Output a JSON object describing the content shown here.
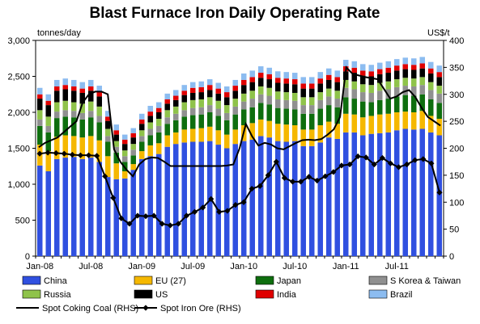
{
  "chart_data": {
    "type": "bar",
    "title": "Blast Furnace Iron Daily Operating Rate",
    "ylabel_left": "tonnes/day",
    "ylabel_right": "US$/t",
    "ylim_left": [
      0,
      3000
    ],
    "ylim_right": [
      0,
      400
    ],
    "yticks_left": [
      "0",
      "500",
      "1,000",
      "1,500",
      "2,000",
      "2,500",
      "3,000"
    ],
    "yticks_right": [
      "0",
      "50",
      "100",
      "150",
      "200",
      "250",
      "300",
      "350",
      "400"
    ],
    "x_labels": [
      "Jan-08",
      "Jul-08",
      "Jan-09",
      "Jul-09",
      "Jan-10",
      "Jul-10",
      "Jan-11",
      "Jul-11"
    ],
    "x_label_positions": [
      0,
      6,
      12,
      18,
      24,
      30,
      36,
      42
    ],
    "stack_series": [
      {
        "name": "China",
        "color": "#3050e0",
        "values": [
          1260,
          1180,
          1350,
          1370,
          1380,
          1350,
          1370,
          1310,
          1100,
          1070,
          1080,
          1200,
          1350,
          1390,
          1420,
          1520,
          1560,
          1580,
          1590,
          1590,
          1600,
          1550,
          1500,
          1560,
          1600,
          1620,
          1670,
          1650,
          1600,
          1590,
          1600,
          1530,
          1530,
          1580,
          1650,
          1630,
          1720,
          1720,
          1680,
          1700,
          1710,
          1720,
          1750,
          1770,
          1760,
          1770,
          1720,
          1680
        ]
      },
      {
        "name": "EU (27)",
        "color": "#f5b800",
        "values": [
          290,
          280,
          310,
          310,
          290,
          300,
          300,
          300,
          290,
          220,
          100,
          80,
          110,
          150,
          150,
          160,
          160,
          180,
          180,
          190,
          200,
          200,
          190,
          200,
          220,
          230,
          230,
          230,
          240,
          240,
          220,
          230,
          230,
          240,
          220,
          210,
          260,
          250,
          250,
          250,
          260,
          260,
          250,
          240,
          240,
          250,
          230,
          230
        ]
      },
      {
        "name": "Japan",
        "color": "#0e6e0e",
        "values": [
          260,
          260,
          260,
          260,
          260,
          250,
          260,
          250,
          200,
          150,
          130,
          120,
          130,
          140,
          150,
          160,
          170,
          180,
          190,
          190,
          200,
          200,
          200,
          210,
          220,
          220,
          230,
          230,
          220,
          220,
          220,
          220,
          220,
          230,
          230,
          230,
          230,
          220,
          220,
          190,
          200,
          210,
          220,
          230,
          230,
          230,
          230,
          220
        ]
      },
      {
        "name": "S Korea & Taiwan",
        "color": "#909090",
        "values": [
          90,
          90,
          90,
          90,
          90,
          90,
          90,
          90,
          80,
          80,
          80,
          80,
          80,
          90,
          90,
          90,
          90,
          90,
          100,
          100,
          100,
          100,
          100,
          110,
          110,
          120,
          120,
          120,
          120,
          120,
          120,
          120,
          120,
          120,
          120,
          120,
          130,
          130,
          130,
          130,
          130,
          130,
          130,
          130,
          130,
          130,
          130,
          130
        ]
      },
      {
        "name": "Russia",
        "color": "#8fc34a",
        "values": [
          130,
          130,
          130,
          130,
          120,
          130,
          130,
          130,
          100,
          80,
          80,
          80,
          80,
          90,
          100,
          100,
          100,
          110,
          110,
          110,
          110,
          110,
          110,
          110,
          110,
          110,
          110,
          110,
          110,
          110,
          110,
          110,
          110,
          110,
          110,
          110,
          110,
          110,
          110,
          110,
          110,
          110,
          110,
          110,
          110,
          110,
          110,
          110
        ]
      },
      {
        "name": "US",
        "color": "#000000",
        "values": [
          160,
          160,
          160,
          160,
          160,
          150,
          150,
          140,
          110,
          90,
          90,
          90,
          90,
          90,
          90,
          90,
          90,
          100,
          100,
          100,
          100,
          100,
          110,
          110,
          120,
          120,
          120,
          120,
          120,
          120,
          120,
          120,
          120,
          120,
          120,
          120,
          120,
          120,
          120,
          120,
          120,
          120,
          120,
          120,
          120,
          120,
          120,
          120
        ]
      },
      {
        "name": "India",
        "color": "#e00000",
        "values": [
          60,
          60,
          60,
          60,
          60,
          60,
          60,
          60,
          60,
          60,
          60,
          60,
          60,
          60,
          60,
          60,
          60,
          60,
          70,
          70,
          70,
          70,
          70,
          70,
          70,
          70,
          70,
          70,
          70,
          70,
          70,
          70,
          70,
          70,
          70,
          70,
          70,
          70,
          70,
          70,
          70,
          70,
          70,
          70,
          70,
          70,
          70,
          70
        ]
      },
      {
        "name": "Brazil",
        "color": "#8cbcf0",
        "values": [
          90,
          90,
          90,
          90,
          90,
          90,
          90,
          90,
          80,
          80,
          70,
          70,
          80,
          80,
          80,
          80,
          80,
          80,
          80,
          80,
          80,
          80,
          80,
          80,
          90,
          90,
          90,
          90,
          90,
          90,
          90,
          90,
          90,
          90,
          90,
          90,
          90,
          90,
          90,
          90,
          90,
          90,
          90,
          90,
          90,
          90,
          90,
          90
        ]
      }
    ],
    "line_series": [
      {
        "name": "Spot Coking Coal (RHS)",
        "marker": "none",
        "color": "#000000",
        "values": [
          202,
          210,
          215,
          220,
          230,
          240,
          250,
          285,
          300,
          305,
          305,
          300,
          198,
          175,
          160,
          148,
          170,
          180,
          183,
          182,
          175,
          167,
          167,
          167,
          167,
          167,
          167,
          167,
          167,
          167,
          168,
          170,
          200,
          245,
          222,
          205,
          210,
          207,
          200,
          198,
          204,
          210,
          215,
          216,
          215,
          217,
          225,
          235,
          258,
          350,
          338,
          335,
          332,
          330,
          328,
          310,
          292,
          296,
          304,
          308,
          295,
          275,
          258,
          250,
          242
        ]
      },
      {
        "name": "Spot Iron Ore (RHS)",
        "marker": "diamond",
        "color": "#000000",
        "values": [
          190,
          192,
          191,
          190,
          188,
          187,
          187,
          186,
          148,
          108,
          70,
          60,
          75,
          74,
          75,
          60,
          57,
          60,
          75,
          82,
          90,
          106,
          82,
          84,
          95,
          100,
          125,
          130,
          150,
          175,
          145,
          138,
          138,
          147,
          140,
          148,
          156,
          168,
          170,
          185,
          183,
          170,
          182,
          172,
          165,
          170,
          178,
          180,
          172,
          118
        ]
      }
    ],
    "legend": [
      {
        "name": "China",
        "kind": "box",
        "color": "#3050e0"
      },
      {
        "name": "EU (27)",
        "kind": "box",
        "color": "#f5b800"
      },
      {
        "name": "Japan",
        "kind": "box",
        "color": "#0e6e0e"
      },
      {
        "name": "S Korea & Taiwan",
        "kind": "box",
        "color": "#909090"
      },
      {
        "name": "Russia",
        "kind": "box",
        "color": "#8fc34a"
      },
      {
        "name": "US",
        "kind": "box",
        "color": "#000000"
      },
      {
        "name": "India",
        "kind": "box",
        "color": "#e00000"
      },
      {
        "name": "Brazil",
        "kind": "box",
        "color": "#8cbcf0"
      },
      {
        "name": "Spot Coking Coal (RHS)",
        "kind": "line",
        "color": "#000000"
      },
      {
        "name": "Spot Iron Ore (RHS)",
        "kind": "line-diamond",
        "color": "#000000"
      }
    ]
  }
}
